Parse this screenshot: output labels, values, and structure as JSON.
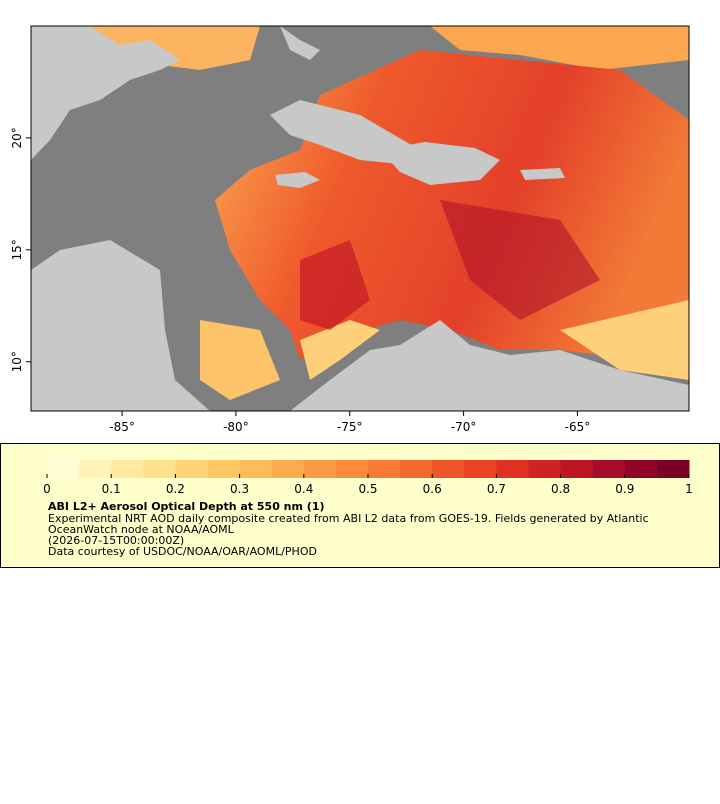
{
  "map": {
    "xlim": [
      -89,
      -60.1
    ],
    "ylim": [
      7.8,
      25
    ],
    "xticks": [
      {
        "value": -85,
        "label": "-85°"
      },
      {
        "value": -80,
        "label": "-80°"
      },
      {
        "value": -75,
        "label": "-75°"
      },
      {
        "value": -70,
        "label": "-70°"
      },
      {
        "value": -65,
        "label": "-65°"
      }
    ],
    "yticks": [
      {
        "value": 10,
        "label": "10°"
      },
      {
        "value": 15,
        "label": "15°"
      },
      {
        "value": 20,
        "label": "20°"
      }
    ]
  },
  "colorbar": {
    "range": [
      0,
      1
    ],
    "ticks": [
      0,
      0.1,
      0.2,
      0.3,
      0.4,
      0.5,
      0.6,
      0.7,
      0.8,
      0.9,
      1
    ],
    "colors": [
      "#fffbd6",
      "#fff3b8",
      "#ffeaa0",
      "#fee18a",
      "#fed576",
      "#fec965",
      "#fdbb5a",
      "#fdab4f",
      "#fc9a45",
      "#fb8a3c",
      "#f97a35",
      "#f5682f",
      "#f0552a",
      "#e94225",
      "#df3122",
      "#d02222",
      "#bd1526",
      "#a70b2a",
      "#90042b",
      "#7a0025"
    ]
  },
  "legend": {
    "title": "ABI L2+ Aerosol Optical Depth at 550 nm (1)",
    "lines": [
      "Experimental NRT AOD daily composite created from ABI L2 data from GOES-19. Fields generated by Atlantic",
      "OceanWatch node at NOAA/AOML",
      "(2026-07-15T00:00:00Z)",
      "Data courtesy of USDOC/NOAA/OAR/AOML/PHOD"
    ]
  }
}
